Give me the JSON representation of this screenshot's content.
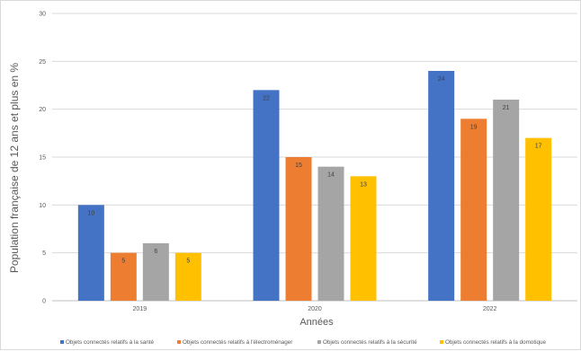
{
  "chart_data": {
    "type": "bar",
    "title": "",
    "xlabel": "Années",
    "ylabel": "Population française de 12 ans et plus en %",
    "ylim": [
      0,
      30
    ],
    "yticks": [
      0,
      5,
      10,
      15,
      20,
      25,
      30
    ],
    "grid": true,
    "legend_position": "bottom",
    "categories": [
      "2019",
      "2020",
      "2022"
    ],
    "series": [
      {
        "name": "Objets connectés relatifs à la santé",
        "color": "#4472C4",
        "values": [
          10,
          22,
          24
        ]
      },
      {
        "name": "Objets connectés relatifs à l'électroménager",
        "color": "#ED7D31",
        "values": [
          5,
          15,
          19
        ]
      },
      {
        "name": "Objets connectés relatifs à la sécurité",
        "color": "#A5A5A5",
        "values": [
          6,
          14,
          21
        ]
      },
      {
        "name": "Objets connectés relatifs à la domotique",
        "color": "#FFC000",
        "values": [
          5,
          13,
          17
        ]
      }
    ]
  }
}
